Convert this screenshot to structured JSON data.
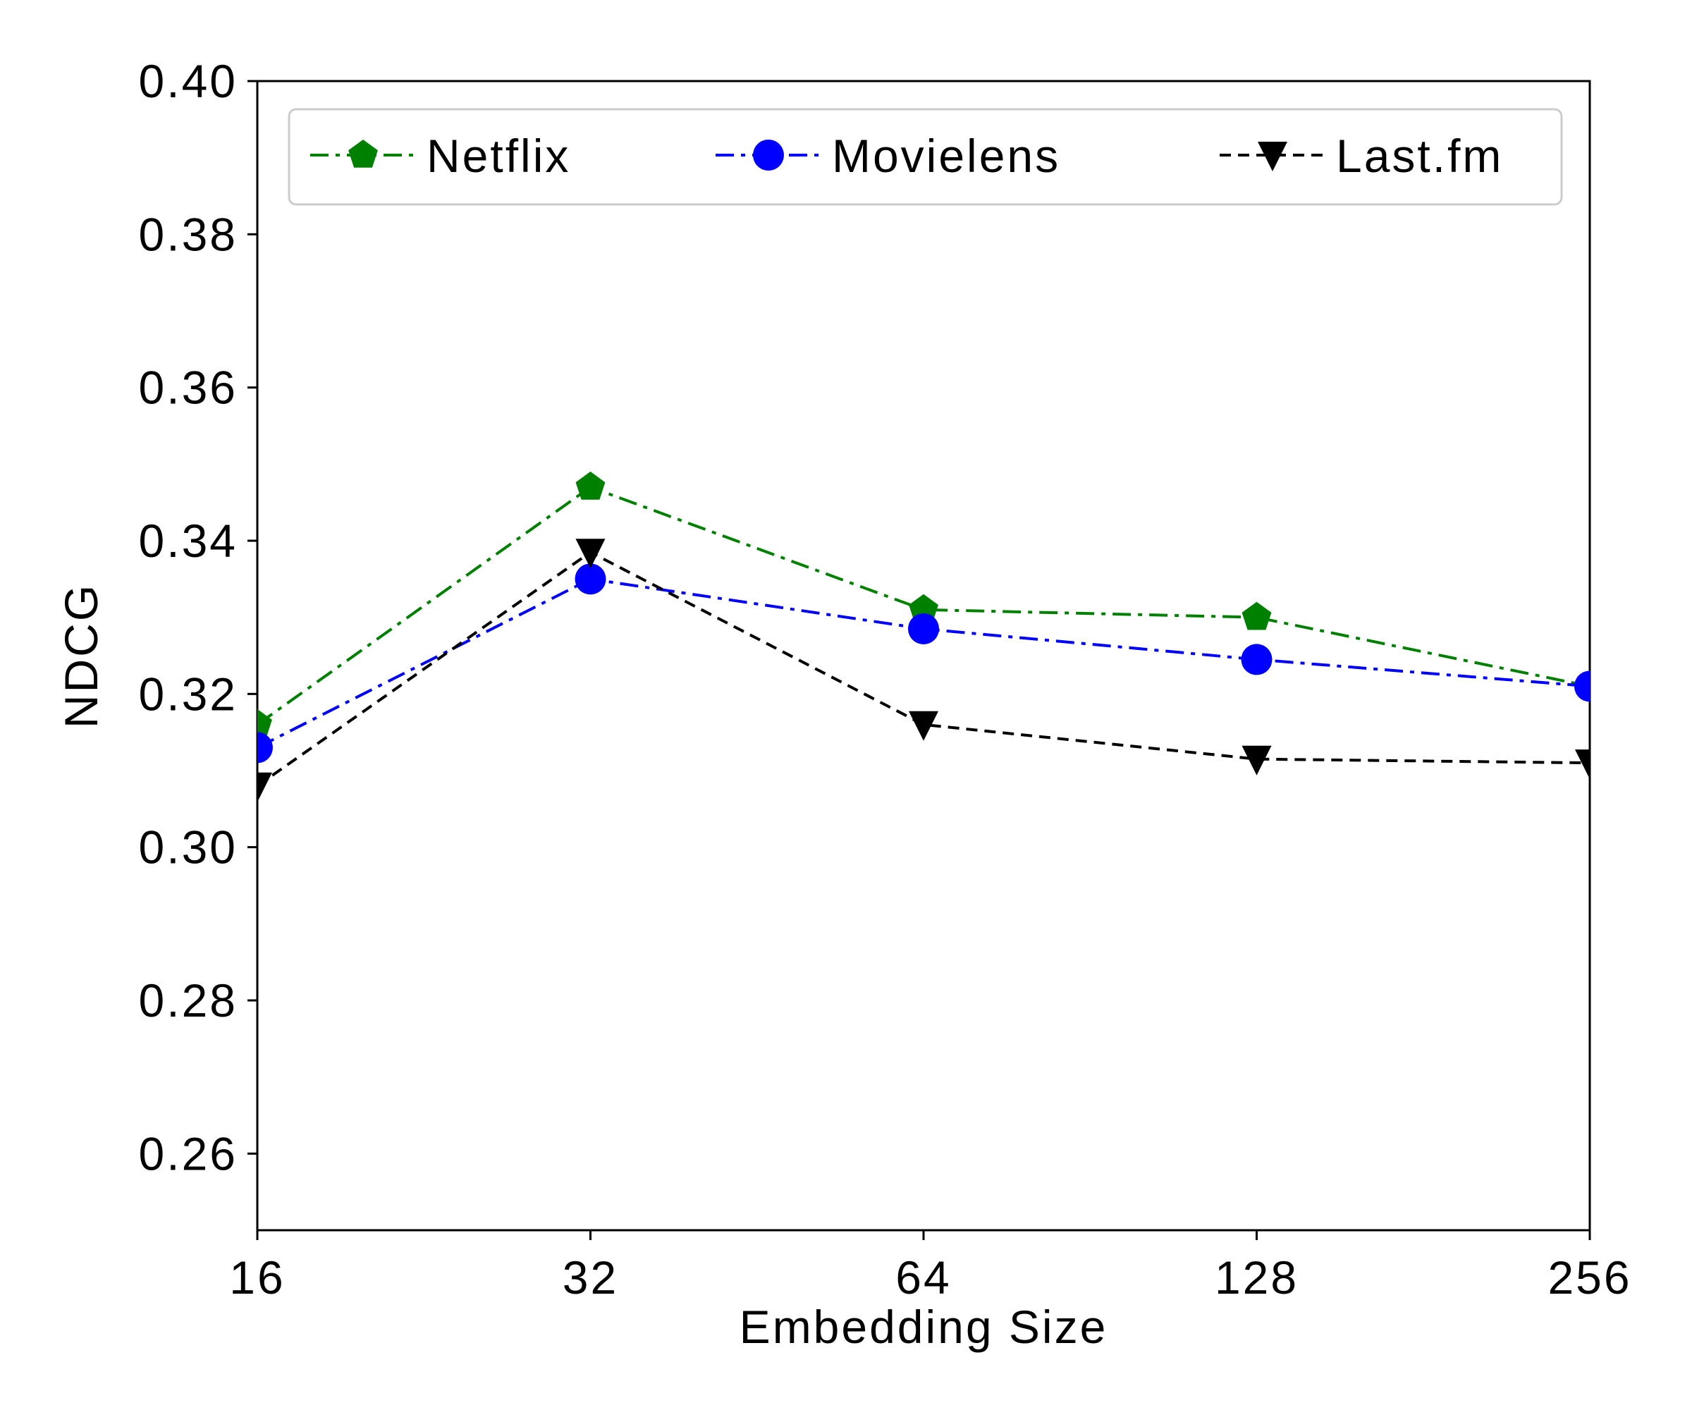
{
  "chart_data": {
    "type": "line",
    "x": [
      "16",
      "32",
      "64",
      "128",
      "256"
    ],
    "xlabel": "Embedding Size",
    "ylabel": "NDCG",
    "ylim": [
      0.25,
      0.4
    ],
    "yticks": [
      "0.26",
      "0.28",
      "0.30",
      "0.32",
      "0.34",
      "0.36",
      "0.38",
      "0.40"
    ],
    "grid": false,
    "legend": "top",
    "series": [
      {
        "name": "Netflix",
        "values": [
          0.316,
          0.347,
          0.331,
          0.33,
          0.321
        ],
        "color": "#008000",
        "marker": "pentagon",
        "dash": "dashdot"
      },
      {
        "name": "Movielens",
        "values": [
          0.313,
          0.335,
          0.3285,
          0.3245,
          0.321
        ],
        "color": "#0000ff",
        "marker": "circle",
        "dash": "dashdot"
      },
      {
        "name": "Last.fm",
        "values": [
          0.308,
          0.3385,
          0.316,
          0.3115,
          0.311
        ],
        "color": "#000000",
        "marker": "triangle-down",
        "dash": "dashed"
      }
    ]
  }
}
